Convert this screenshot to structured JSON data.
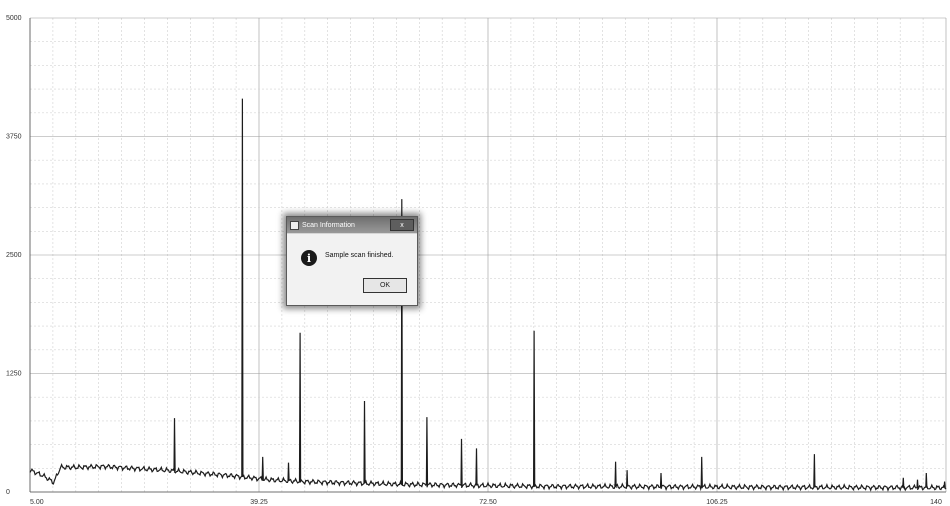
{
  "window": {
    "title": "Scan Information"
  },
  "dialog": {
    "title": "Scan Information",
    "message": "Sample scan finished.",
    "ok_label": "OK",
    "close_label": "x",
    "icon": "info-icon"
  },
  "chart_data": {
    "type": "line",
    "title": "",
    "xlabel": "",
    "ylabel": "",
    "xlim": [
      5.0,
      140.0
    ],
    "ylim": [
      0,
      5000
    ],
    "x_ticks": [
      "5.00",
      "39.25",
      "72.50",
      "106.25",
      "140"
    ],
    "y_ticks": [
      "0",
      "1250",
      "2500",
      "3750",
      "5000"
    ],
    "grid": true,
    "baseline": [
      [
        5.0,
        230
      ],
      [
        6.0,
        200
      ],
      [
        7.0,
        170
      ],
      [
        8.5,
        100
      ],
      [
        9.5,
        260
      ],
      [
        12,
        260
      ],
      [
        16,
        270
      ],
      [
        20,
        250
      ],
      [
        25,
        230
      ],
      [
        30,
        200
      ],
      [
        35,
        170
      ],
      [
        40,
        130
      ],
      [
        45,
        110
      ],
      [
        50,
        100
      ],
      [
        60,
        80
      ],
      [
        70,
        70
      ],
      [
        80,
        60
      ],
      [
        100,
        55
      ],
      [
        120,
        50
      ],
      [
        140,
        45
      ]
    ],
    "peaks": [
      {
        "x": 26.3,
        "y": 780
      },
      {
        "x": 36.3,
        "y": 4150
      },
      {
        "x": 39.3,
        "y": 370
      },
      {
        "x": 43.1,
        "y": 310
      },
      {
        "x": 44.8,
        "y": 1680
      },
      {
        "x": 54.3,
        "y": 960
      },
      {
        "x": 59.8,
        "y": 3090
      },
      {
        "x": 63.5,
        "y": 790
      },
      {
        "x": 68.6,
        "y": 560
      },
      {
        "x": 70.8,
        "y": 460
      },
      {
        "x": 79.3,
        "y": 1700
      },
      {
        "x": 91.3,
        "y": 320
      },
      {
        "x": 93.0,
        "y": 230
      },
      {
        "x": 98.0,
        "y": 200
      },
      {
        "x": 104.0,
        "y": 370
      },
      {
        "x": 120.6,
        "y": 400
      },
      {
        "x": 133.7,
        "y": 150
      },
      {
        "x": 135.8,
        "y": 130
      },
      {
        "x": 137.1,
        "y": 200
      },
      {
        "x": 139.8,
        "y": 110
      }
    ]
  }
}
